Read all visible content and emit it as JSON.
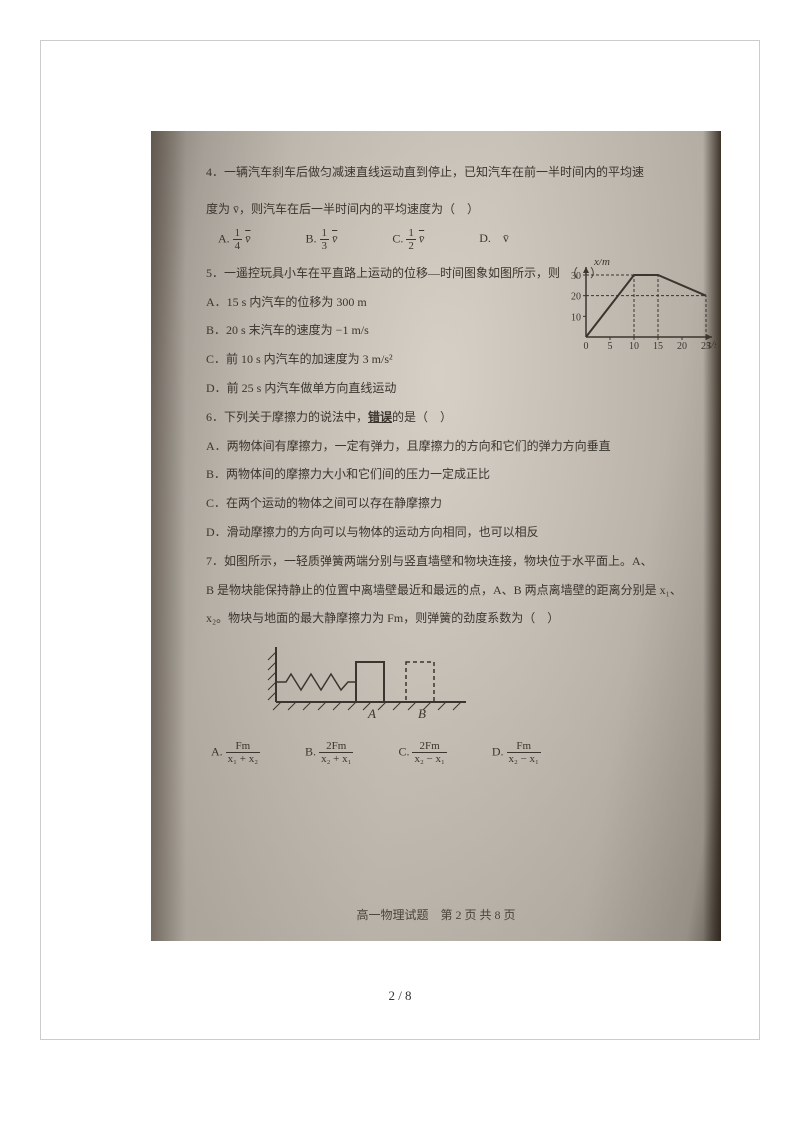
{
  "q4": {
    "text1": "4．一辆汽车刹车后做匀减速直线运动直到停止，已知汽车在前一半时间内的平均速",
    "text2": "度为 v̄，则汽车在后一半时间内的平均速度为（　）",
    "opts": {
      "A": "A.",
      "A_n": "1",
      "A_d": "4",
      "A_v": "v̄",
      "B": "B.",
      "B_n": "1",
      "B_d": "3",
      "B_v": "v̄",
      "C": "C.",
      "C_n": "1",
      "C_d": "2",
      "C_v": "v̄",
      "D": "D.　v̄"
    }
  },
  "q5": {
    "text": "5．一遥控玩具小车在平直路上运动的位移—时间图象如图所示，则　（　）",
    "A": "A．15 s 内汽车的位移为 300 m",
    "B": "B．20 s 末汽车的速度为 −1 m/s",
    "C": "C．前 10 s 内汽车的加速度为 3 m/s²",
    "D": "D．前 25 s 内汽车做单方向直线运动",
    "graph": {
      "ylabel": "x/m",
      "xlabel": "t/s",
      "yticks": [
        10,
        20,
        30
      ],
      "xticks": [
        0,
        5,
        10,
        15,
        20,
        25
      ],
      "points": [
        [
          0,
          0
        ],
        [
          10,
          30
        ],
        [
          15,
          30
        ],
        [
          25,
          20
        ]
      ],
      "axis_color": "#3a352e",
      "line_color": "#3a352e",
      "dash_color": "#3a352e"
    }
  },
  "q6": {
    "text": "6．下列关于摩擦力的说法中，<b>错误</b>的是（　）",
    "A": "A．两物体间有摩擦力，一定有弹力，且摩擦力的方向和它们的弹力方向垂直",
    "B": "B．两物体间的摩擦力大小和它们间的压力一定成正比",
    "C": "C．在两个运动的物体之间可以存在静摩擦力",
    "D": "D．滑动摩擦力的方向可以与物体的运动方向相同，也可以相反"
  },
  "q7": {
    "text1": "7．如图所示，一轻质弹簧两端分别与竖直墙壁和物块连接，物块位于水平面上。A、",
    "text2": "B 是物块能保持静止的位置中离墙壁最近和最远的点，A、B 两点离墙壁的距离分别是 x₁、",
    "text3": "x₂。物块与地面的最大静摩擦力为 Fm，则弹簧的劲度系数为（　）",
    "opts": {
      "A": {
        "label": "A.",
        "n": "Fm",
        "d": "x₁ + x₂"
      },
      "B": {
        "label": "B.",
        "n": "2Fm",
        "d": "x₂ + x₁"
      },
      "C": {
        "label": "C.",
        "n": "2Fm",
        "d": "x₂ − x₁"
      },
      "D": {
        "label": "D.",
        "n": "Fm",
        "d": "x₂ − x₁"
      }
    },
    "diagram": {
      "A": "A",
      "B": "B"
    }
  },
  "footer_in": "高一物理试题　第 2 页 共 8 页",
  "page_num": "2 / 8"
}
